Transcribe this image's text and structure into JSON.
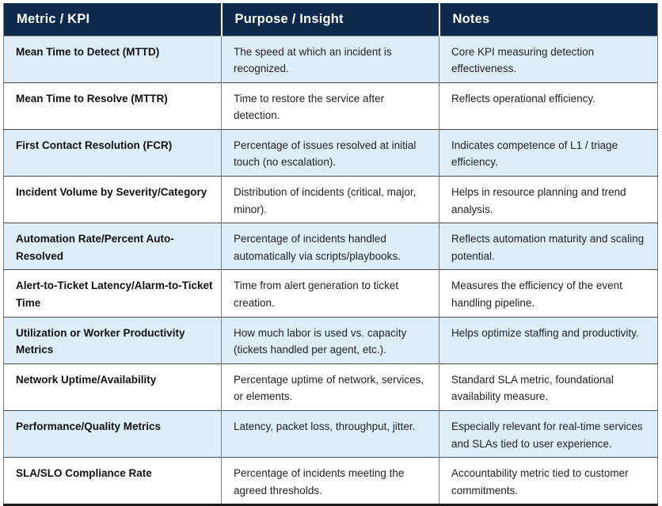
{
  "colors": {
    "header_bg": "#0d2a4c",
    "header_text": "#ffffff",
    "row_alt_bg": "#ddeefa",
    "row_bg": "#ffffff",
    "grid_line": "#7f7f7f",
    "row_separator": "#4a4a4a",
    "bottom_border": "#1b1b1b"
  },
  "table": {
    "headers": [
      "Metric / KPI",
      "Purpose / Insight",
      "Notes"
    ],
    "rows": [
      {
        "metric": "Mean Time to Detect (MTTD)",
        "purpose": "The speed at which an incident is recognized.",
        "notes": "Core KPI measuring detection effectiveness."
      },
      {
        "metric": "Mean Time to Resolve (MTTR)",
        "purpose": "Time to restore the service after detection.",
        "notes": "Reflects operational efficiency."
      },
      {
        "metric": "First Contact Resolution (FCR)",
        "purpose": "Percentage of issues resolved at initial touch (no escalation).",
        "notes": "Indicates competence of L1 / triage efficiency."
      },
      {
        "metric": "Incident Volume by Severity/Category",
        "purpose": "Distribution of incidents (critical, major, minor).",
        "notes": "Helps in resource planning and trend analysis."
      },
      {
        "metric": "Automation Rate/Percent Auto-Resolved",
        "purpose": "Percentage of incidents handled automatically via scripts/playbooks.",
        "notes": "Reflects automation maturity and scaling potential."
      },
      {
        "metric": "Alert-to-Ticket Latency/Alarm-to-Ticket Time",
        "purpose": "Time from alert generation to ticket creation.",
        "notes": "Measures the efficiency of the event handling pipeline."
      },
      {
        "metric": "Utilization or Worker Productivity Metrics",
        "purpose": "How much labor is used vs. capacity (tickets handled per agent, etc.).",
        "notes": "Helps optimize staffing and productivity."
      },
      {
        "metric": "Network Uptime/Availability",
        "purpose": "Percentage uptime of network, services, or elements.",
        "notes": "Standard SLA metric, foundational availability measure."
      },
      {
        "metric": "Performance/Quality Metrics",
        "purpose": "Latency, packet loss, throughput, jitter.",
        "notes": "Especially relevant for real-time services and SLAs tied to user experience."
      },
      {
        "metric": "SLA/SLO Compliance Rate",
        "purpose": "Percentage of incidents meeting the agreed thresholds.",
        "notes": "Accountability metric tied to customer commitments."
      }
    ]
  }
}
